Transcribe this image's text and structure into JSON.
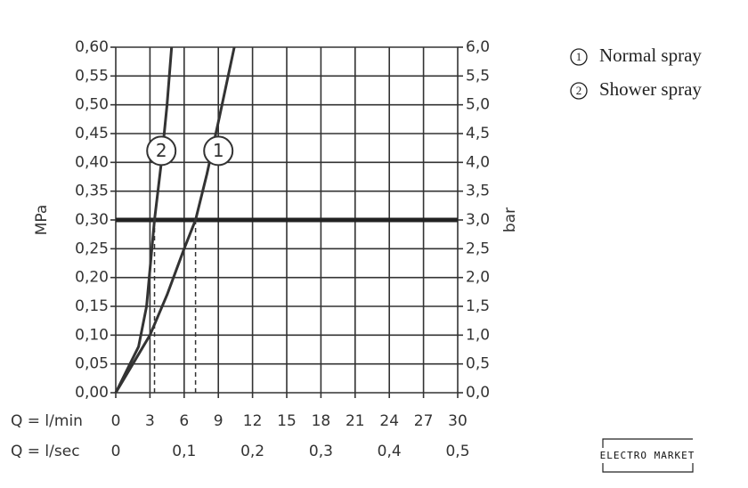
{
  "chart_data": {
    "type": "line",
    "ylabel": "MPa",
    "y2label": "bar",
    "xlabel": "Q = l/min",
    "x2label": "Q = l/sec",
    "xlim": [
      0,
      30
    ],
    "xticks": [
      0,
      3,
      6,
      9,
      12,
      15,
      18,
      21,
      24,
      27,
      30
    ],
    "x2lim": [
      0,
      0.5
    ],
    "x2ticks": [
      0,
      {
        "value": 0.1,
        "label": "0,1"
      },
      {
        "value": 0.2,
        "label": "0,2"
      },
      {
        "value": 0.3,
        "label": "0,3"
      },
      {
        "value": 0.4,
        "label": "0,4"
      },
      {
        "value": 0.5,
        "label": "0,5"
      }
    ],
    "ylim": [
      0,
      0.6
    ],
    "yticks": [
      {
        "value": 0,
        "label": "0,00"
      },
      {
        "value": 0.05,
        "label": "0,05"
      },
      {
        "value": 0.1,
        "label": "0,10"
      },
      {
        "value": 0.15,
        "label": "0,15"
      },
      {
        "value": 0.2,
        "label": "0,20"
      },
      {
        "value": 0.25,
        "label": "0,25"
      },
      {
        "value": 0.3,
        "label": "0,30"
      },
      {
        "value": 0.35,
        "label": "0,35"
      },
      {
        "value": 0.4,
        "label": "0,40"
      },
      {
        "value": 0.45,
        "label": "0,45"
      },
      {
        "value": 0.5,
        "label": "0,50"
      },
      {
        "value": 0.55,
        "label": "0,55"
      },
      {
        "value": 0.6,
        "label": "0,60"
      }
    ],
    "y2lim": [
      0,
      6
    ],
    "y2ticks": [
      {
        "value": 0,
        "label": "0,0"
      },
      {
        "value": 0.5,
        "label": "0,5"
      },
      {
        "value": 1,
        "label": "1,0"
      },
      {
        "value": 1.5,
        "label": "1,5"
      },
      {
        "value": 2,
        "label": "2,0"
      },
      {
        "value": 2.5,
        "label": "2,5"
      },
      {
        "value": 3,
        "label": "3,0"
      },
      {
        "value": 3.5,
        "label": "3,5"
      },
      {
        "value": 4,
        "label": "4,0"
      },
      {
        "value": 4.5,
        "label": "4,5"
      },
      {
        "value": 5,
        "label": "5,0"
      },
      {
        "value": 5.5,
        "label": "5,5"
      },
      {
        "value": 6,
        "label": "6,0"
      }
    ],
    "grid": true,
    "reference_y": 0.3,
    "reference_x": [
      3.4,
      7
    ],
    "series": [
      {
        "name": "Normal spray",
        "marker_label": "1",
        "label_at": [
          9,
          0.42
        ],
        "color": "#333333",
        "x": [
          0,
          1.5,
          3,
          4.5,
          6,
          7,
          8,
          9,
          10.4
        ],
        "values": [
          0,
          0.05,
          0.1,
          0.17,
          0.25,
          0.3,
          0.38,
          0.47,
          0.6
        ]
      },
      {
        "name": "Shower spray",
        "marker_label": "2",
        "label_at": [
          4,
          0.42
        ],
        "color": "#333333",
        "x": [
          0,
          1,
          2,
          2.7,
          3.4,
          4.0,
          4.5,
          4.9
        ],
        "values": [
          0,
          0.04,
          0.08,
          0.15,
          0.3,
          0.4,
          0.5,
          0.6
        ]
      }
    ],
    "legend": "top-right",
    "watermark": "ELECTRO MARKET"
  }
}
